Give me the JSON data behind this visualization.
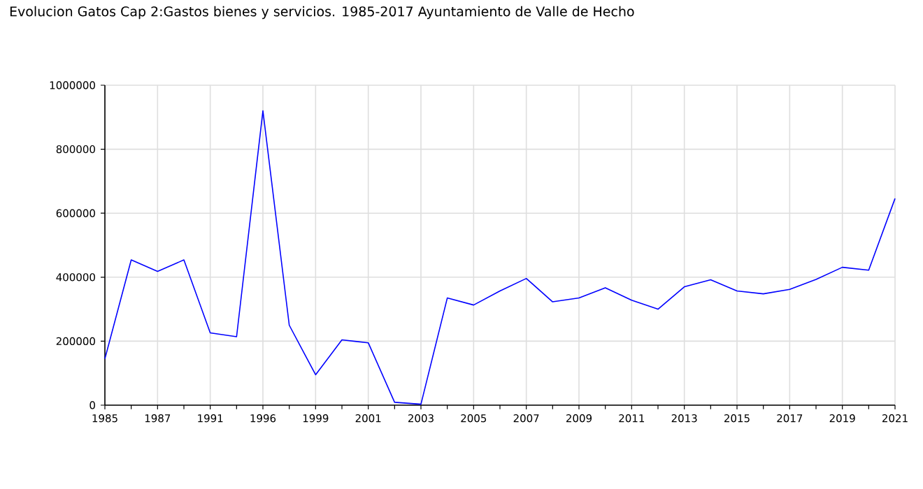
{
  "chart_data": {
    "type": "line",
    "title": "Evolucion Gatos Cap 2:Gastos bienes y servicios. 1985-2017 Ayuntamiento de Valle de Hecho",
    "categories": [
      "1985",
      null,
      "1987",
      null,
      "1991",
      null,
      "1996",
      null,
      "1999",
      null,
      "2001",
      null,
      "2003",
      null,
      "2005",
      null,
      "2007",
      null,
      "2009",
      null,
      "2011",
      null,
      "2013",
      null,
      "2015",
      null,
      "2017",
      null,
      "2019",
      null,
      "2021"
    ],
    "series": [
      {
        "color": "#0000ff",
        "values": [
          145000,
          454000,
          418000,
          454000,
          226000,
          214000,
          920000,
          250000,
          95000,
          204000,
          195000,
          9000,
          3000,
          335000,
          313000,
          357000,
          396000,
          323000,
          335000,
          367000,
          328000,
          300000,
          370000,
          392000,
          357000,
          348000,
          362000,
          393000,
          431000,
          422000,
          646000
        ]
      }
    ],
    "ylim": [
      0,
      1000000
    ],
    "yticks": [
      0,
      200000,
      400000,
      600000,
      800000,
      1000000
    ],
    "grid": true,
    "line_style": "solid",
    "marker": "none"
  }
}
